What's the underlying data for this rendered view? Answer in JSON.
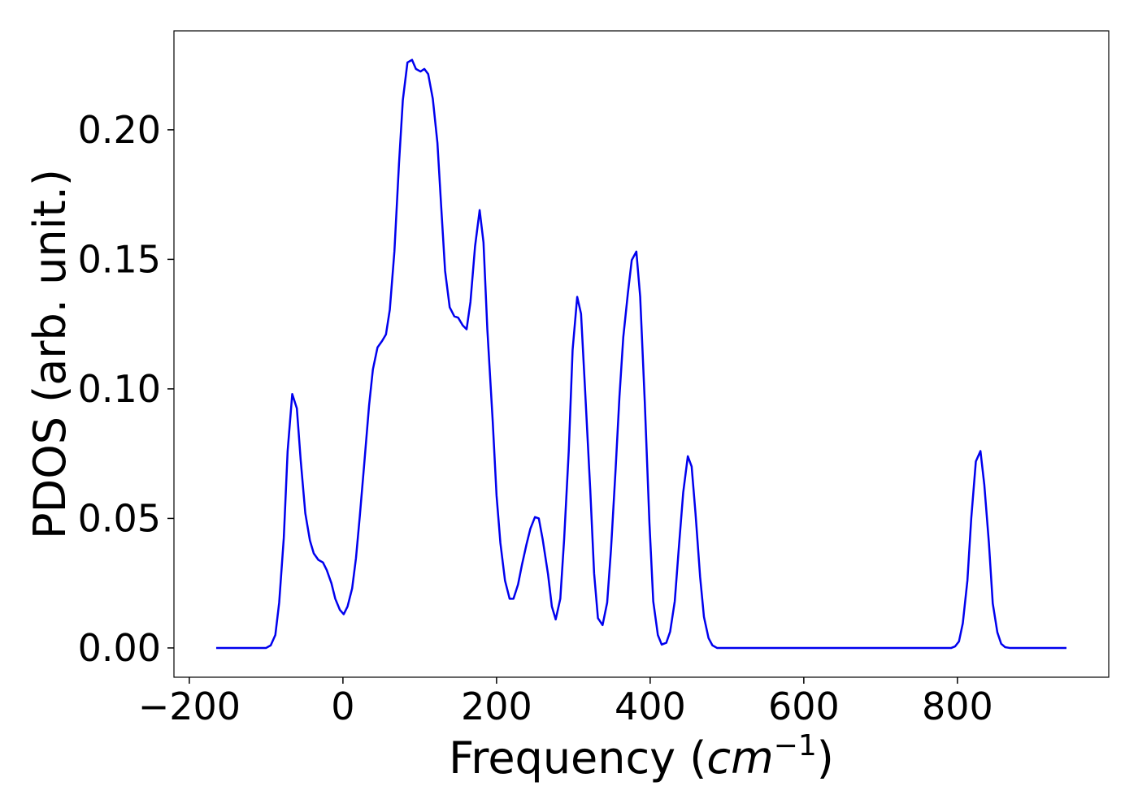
{
  "chart_data": {
    "type": "line",
    "xlabel": [
      "Frequency (",
      "cm",
      "−1",
      ")"
    ],
    "ylabel": "PDOS (arb. unit.)",
    "color": "#0000ee",
    "xlim": [
      -220,
      997
    ],
    "ylim": [
      -0.0113,
      0.2382
    ],
    "xticks": [
      {
        "value": -200,
        "label": "−200"
      },
      0,
      200,
      400,
      600,
      800
    ],
    "yticks": [
      {
        "value": 0,
        "label": "0.00"
      },
      {
        "value": 0.05,
        "label": "0.05"
      },
      {
        "value": 0.1,
        "label": "0.10"
      },
      {
        "value": 0.15,
        "label": "0.15"
      },
      {
        "value": 0.2,
        "label": "0.20"
      }
    ],
    "grid": false,
    "x": [
      -165,
      -100,
      -94,
      -88,
      -83,
      -77,
      -72,
      -66,
      -60,
      -55,
      -49,
      -43,
      -38,
      -32,
      -26,
      -21,
      -15,
      -10,
      -4,
      1,
      6,
      12,
      17,
      22,
      28,
      34,
      39,
      45,
      51,
      56,
      61,
      67,
      73,
      78,
      84,
      90,
      95,
      101,
      106,
      111,
      117,
      123,
      128,
      133,
      139,
      145,
      150,
      156,
      161,
      166,
      172,
      178,
      183,
      188,
      195,
      200,
      205,
      211,
      217,
      222,
      228,
      233,
      239,
      244,
      250,
      255,
      260,
      267,
      272,
      277,
      283,
      288,
      294,
      299,
      305,
      310,
      315,
      322,
      327,
      332,
      338,
      344,
      349,
      355,
      360,
      365,
      371,
      376,
      382,
      387,
      393,
      399,
      404,
      410,
      415,
      421,
      426,
      432,
      437,
      443,
      449,
      454,
      459,
      465,
      470,
      476,
      481,
      487,
      792,
      797,
      802,
      807,
      813,
      818,
      824,
      830,
      835,
      841,
      846,
      852,
      857,
      862,
      868,
      942
    ],
    "values": [
      0,
      0,
      0.001,
      0.005,
      0.0175,
      0.0425,
      0.076,
      0.098,
      0.0925,
      0.0725,
      0.052,
      0.0415,
      0.0365,
      0.034,
      0.033,
      0.03,
      0.025,
      0.019,
      0.0147,
      0.013,
      0.016,
      0.023,
      0.0347,
      0.051,
      0.072,
      0.0935,
      0.1075,
      0.116,
      0.1185,
      0.121,
      0.1305,
      0.153,
      0.187,
      0.2115,
      0.226,
      0.227,
      0.2235,
      0.2225,
      0.2235,
      0.2215,
      0.212,
      0.195,
      0.17,
      0.1455,
      0.1315,
      0.128,
      0.1275,
      0.1245,
      0.123,
      0.1335,
      0.155,
      0.169,
      0.1565,
      0.123,
      0.0875,
      0.0588,
      0.0405,
      0.026,
      0.019,
      0.019,
      0.0245,
      0.032,
      0.04,
      0.046,
      0.0505,
      0.05,
      0.042,
      0.0285,
      0.016,
      0.011,
      0.019,
      0.042,
      0.076,
      0.115,
      0.1355,
      0.129,
      0.101,
      0.061,
      0.0288,
      0.0115,
      0.0088,
      0.0175,
      0.038,
      0.069,
      0.097,
      0.12,
      0.137,
      0.1497,
      0.153,
      0.1355,
      0.0947,
      0.0485,
      0.018,
      0.005,
      0.0013,
      0.002,
      0.0063,
      0.018,
      0.0375,
      0.06,
      0.074,
      0.07,
      0.052,
      0.0275,
      0.012,
      0.0038,
      0.001,
      0,
      0,
      0.0006,
      0.0025,
      0.0095,
      0.026,
      0.05,
      0.072,
      0.076,
      0.063,
      0.0405,
      0.0172,
      0.006,
      0.0016,
      0.0003,
      0,
      0
    ]
  }
}
